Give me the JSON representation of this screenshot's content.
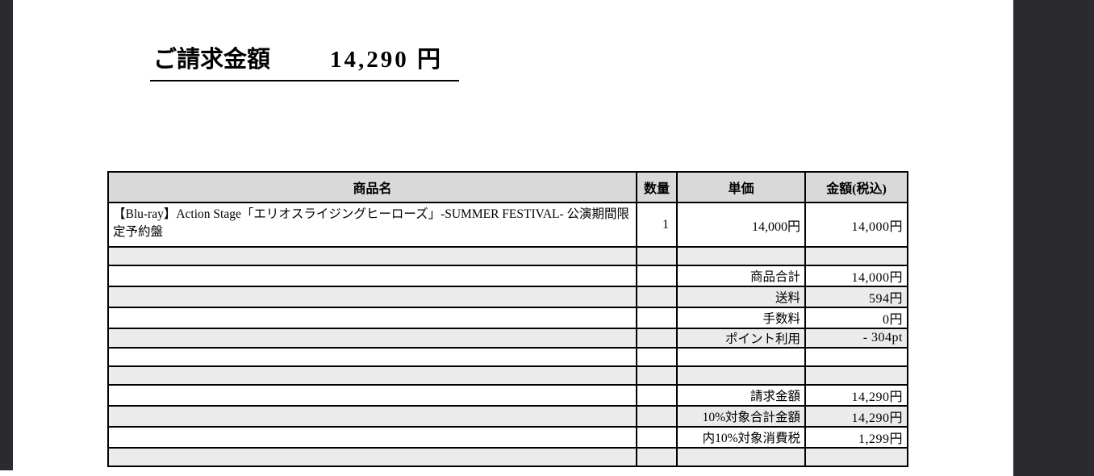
{
  "page": {
    "background": "#ffffff",
    "side_panel_color": "#2a2a2f"
  },
  "title": {
    "label": "ご請求金額",
    "amount": "14,290 円"
  },
  "table": {
    "header_bg": "#d9d9d9",
    "alt_row_bg": "#ebebeb",
    "border_color": "#000000",
    "headers": [
      "商品名",
      "数量",
      "単価",
      "金額(税込)"
    ],
    "rows": [
      {
        "type": "item",
        "bg": "white",
        "name": "【Blu-ray】Action Stage「エリオスライジングヒーローズ」-SUMMER FESTIVAL- 公演期間限定予約盤",
        "qty": "1",
        "unit_price": "14,000円",
        "amount": "14,000円"
      },
      {
        "type": "empty",
        "bg": "gray"
      },
      {
        "type": "summary",
        "bg": "white",
        "label": "商品合計",
        "amount": "14,000円"
      },
      {
        "type": "summary",
        "bg": "gray",
        "label": "送料",
        "amount": "594円"
      },
      {
        "type": "summary",
        "bg": "white",
        "label": "手数料",
        "amount": "0円"
      },
      {
        "type": "summary",
        "bg": "gray",
        "label": "ポイント利用",
        "amount": "- 304pt"
      },
      {
        "type": "empty",
        "bg": "white"
      },
      {
        "type": "empty",
        "bg": "gray"
      },
      {
        "type": "summary",
        "bg": "white",
        "label": "請求金額",
        "amount": "14,290円"
      },
      {
        "type": "summary",
        "bg": "gray",
        "label": "10%対象合計金額",
        "amount": "14,290円"
      },
      {
        "type": "summary",
        "bg": "white",
        "label": "内10%対象消費税",
        "amount": "1,299円"
      },
      {
        "type": "empty",
        "bg": "gray"
      }
    ]
  }
}
